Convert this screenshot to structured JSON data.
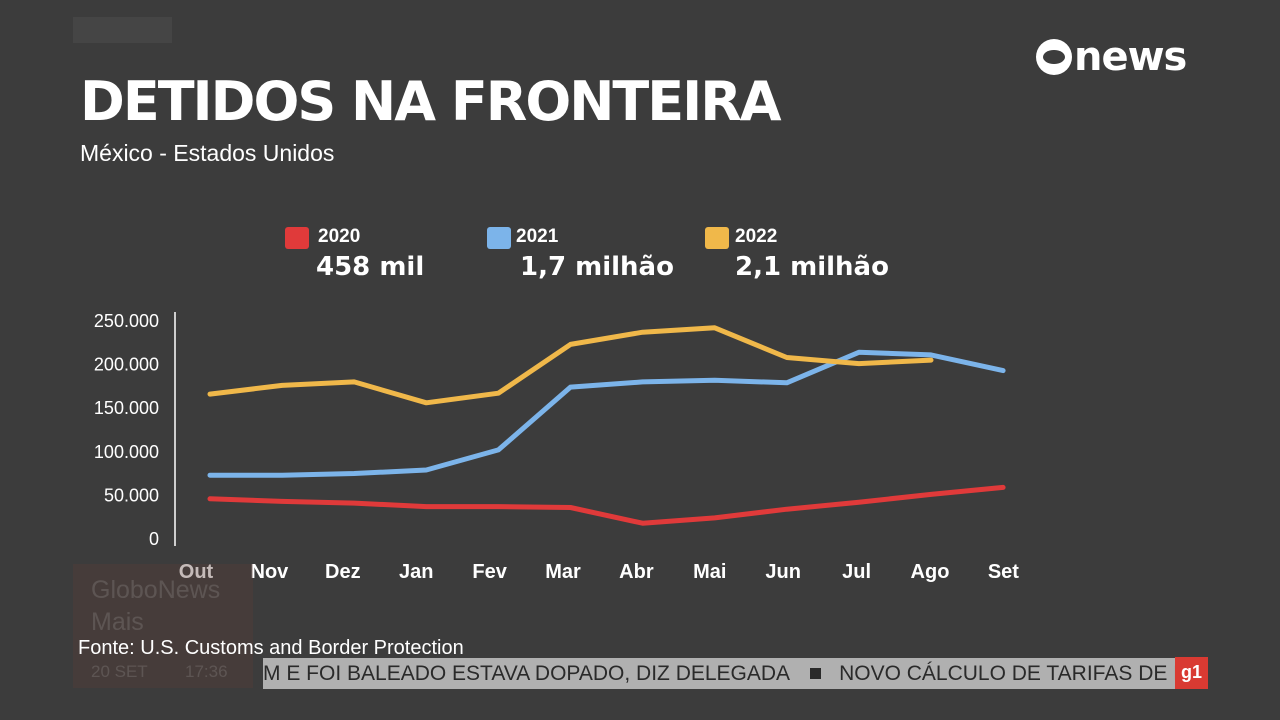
{
  "logo": "news",
  "title": "DETIDOS NA FRONTEIRA",
  "subtitle": "México - Estados Unidos",
  "source": "Fonte: U.S. Customs and Border Protection",
  "bug": {
    "channel_line1": "GloboNews",
    "channel_line2": "Mais",
    "date": "20 SET",
    "time": "17:36"
  },
  "ticker": {
    "item1": "M E FOI BALEADO ESTAVA DOPADO, DIZ DELEGADA",
    "item2": "NOVO CÁLCULO DE TARIFAS DE EN",
    "badge": "g1"
  },
  "chart_data": {
    "type": "line",
    "categories": [
      "Out",
      "Nov",
      "Dez",
      "Jan",
      "Fev",
      "Mar",
      "Abr",
      "Mai",
      "Jun",
      "Jul",
      "Ago",
      "Set"
    ],
    "y_ticks": [
      "250.000",
      "200.000",
      "150.000",
      "100.000",
      "50.000",
      "0"
    ],
    "y_tick_values": [
      250000,
      200000,
      150000,
      100000,
      50000,
      0
    ],
    "ylim": [
      0,
      250000
    ],
    "grid": false,
    "legend_placement": "top",
    "series": [
      {
        "name": "2020",
        "total": "458 mil",
        "color": "#e03a3a",
        "values": [
          45000,
          42000,
          40000,
          36000,
          36000,
          35000,
          17000,
          23000,
          33000,
          41000,
          50000,
          58000
        ]
      },
      {
        "name": "2021",
        "total": "1,7 milhão",
        "color": "#7cb4ea",
        "values": [
          72000,
          72000,
          74000,
          78000,
          101000,
          173000,
          179000,
          181000,
          178000,
          213000,
          210000,
          192000
        ]
      },
      {
        "name": "2022",
        "total": "2,1 milhão",
        "color": "#f0b84a",
        "values": [
          165000,
          175000,
          179000,
          155000,
          166000,
          222000,
          236000,
          241000,
          207000,
          200000,
          204000,
          null
        ]
      }
    ]
  }
}
